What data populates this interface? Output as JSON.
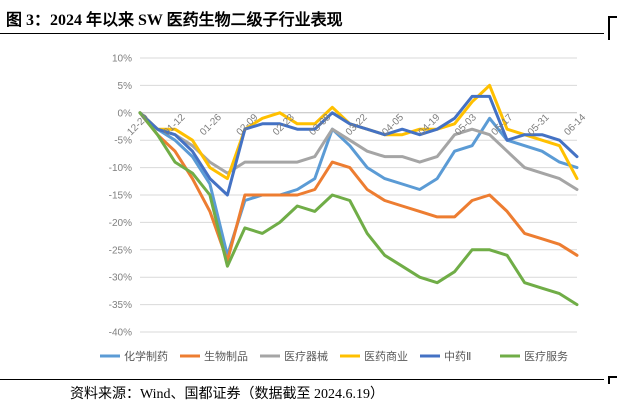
{
  "figure": {
    "title": "图 3：2024 年以来 SW 医药生物二级子行业表现",
    "source": "资料来源：Wind、国都证券（数据截至 2024.6.19）"
  },
  "colors": {
    "化学制药": "#5b9bd5",
    "生物制品": "#ed7d31",
    "医疗器械": "#a5a5a5",
    "医药商业": "#ffc000",
    "中药Ⅱ": "#4472c4",
    "医疗服务": "#70ad47",
    "grid": "#d9d9d9",
    "axis": "#bfbfbf"
  },
  "chart_data": {
    "type": "line",
    "ylim": [
      -40,
      10
    ],
    "yticks": [
      10,
      5,
      0,
      -5,
      -10,
      -15,
      -20,
      -25,
      -30,
      -35,
      -40
    ],
    "ytick_labels": [
      "10%",
      "5%",
      "0%",
      "-5%",
      "-10%",
      "-15%",
      "-20%",
      "-25%",
      "-30%",
      "-35%",
      "-40%"
    ],
    "y_unit": "%",
    "x_tick_labels": [
      "12-29",
      "01-12",
      "01-26",
      "02-09",
      "02-23",
      "03-08",
      "03-22",
      "04-05",
      "04-19",
      "05-03",
      "05-17",
      "05-31",
      "06-14"
    ],
    "legend_position": "bottom",
    "grid": "horizontal",
    "x": [
      "12-29",
      "01-05",
      "01-12",
      "01-19",
      "01-26",
      "02-02",
      "02-09",
      "02-16",
      "02-23",
      "03-01",
      "03-08",
      "03-15",
      "03-22",
      "03-29",
      "04-05",
      "04-12",
      "04-19",
      "04-26",
      "05-03",
      "05-10",
      "05-17",
      "05-24",
      "05-31",
      "06-07",
      "06-14",
      "06-19"
    ],
    "series": [
      {
        "name": "化学制药",
        "values": [
          0,
          -3,
          -5,
          -8,
          -13,
          -26,
          -16,
          -15,
          -15,
          -14,
          -12,
          -3,
          -6,
          -10,
          -12,
          -13,
          -14,
          -12,
          -7,
          -6,
          -1,
          -5,
          -6,
          -7,
          -9,
          -10
        ]
      },
      {
        "name": "生物制品",
        "values": [
          0,
          -4,
          -7,
          -12,
          -18,
          -27,
          -15,
          -15,
          -15,
          -15,
          -14,
          -9,
          -10,
          -14,
          -16,
          -17,
          -18,
          -19,
          -19,
          -16,
          -15,
          -18,
          -22,
          -23,
          -24,
          -26
        ]
      },
      {
        "name": "医疗器械",
        "values": [
          0,
          -3,
          -4,
          -6,
          -9,
          -11,
          -9,
          -9,
          -9,
          -9,
          -8,
          -3,
          -5,
          -7,
          -8,
          -8,
          -9,
          -8,
          -4,
          -3,
          -4,
          -7,
          -10,
          -11,
          -12,
          -14
        ]
      },
      {
        "name": "医药商业",
        "values": [
          0,
          -3,
          -3,
          -5,
          -10,
          -12,
          -3,
          -1,
          0,
          -2,
          -2,
          1,
          -2,
          -3,
          -4,
          -4,
          -3,
          -3,
          -2,
          2,
          5,
          -3,
          -4,
          -5,
          -6,
          -12
        ]
      },
      {
        "name": "中药Ⅱ",
        "values": [
          0,
          -3,
          -4,
          -7,
          -12,
          -15,
          -3,
          -2,
          -2,
          -3,
          -3,
          0,
          -2,
          -3,
          -4,
          -3,
          -4,
          -3,
          -1,
          3,
          3,
          -5,
          -4,
          -4,
          -5,
          -8
        ]
      },
      {
        "name": "医疗服务",
        "values": [
          0,
          -4,
          -9,
          -11,
          -15,
          -28,
          -21,
          -22,
          -20,
          -17,
          -18,
          -15,
          -16,
          -22,
          -26,
          -28,
          -30,
          -31,
          -29,
          -25,
          -25,
          -26,
          -31,
          -32,
          -33,
          -35
        ]
      }
    ]
  }
}
